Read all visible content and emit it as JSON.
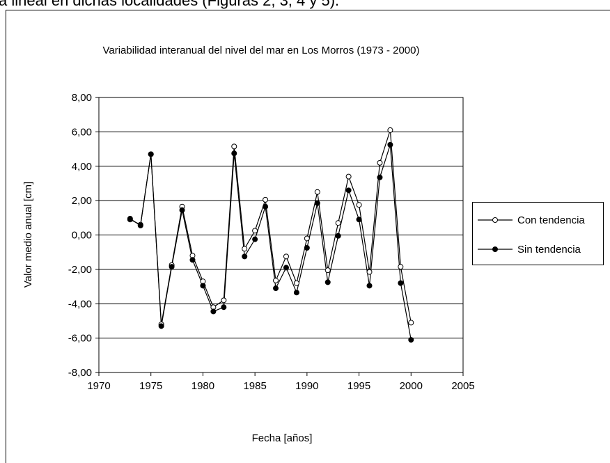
{
  "caption_text": "a lineal en dichas localidades (Figuras 2, 3, 4 y 5).",
  "chart_data": {
    "type": "line",
    "title": "Variabilidad interanual del nivel del mar en Los Morros (1973 - 2000)",
    "xlabel": "Fecha [años]",
    "ylabel": "Valor medio anual [cm]",
    "x": [
      1973,
      1974,
      1975,
      1976,
      1977,
      1978,
      1979,
      1980,
      1981,
      1982,
      1983,
      1984,
      1985,
      1986,
      1987,
      1988,
      1989,
      1990,
      1991,
      1992,
      1993,
      1994,
      1995,
      1996,
      1997,
      1998,
      1999,
      2000
    ],
    "series": [
      {
        "name": "Con tendencia",
        "color": "#000000",
        "marker": "open",
        "values": [
          0.9,
          0.6,
          4.7,
          -5.2,
          -1.75,
          1.65,
          -1.2,
          -2.7,
          -4.2,
          -3.8,
          5.15,
          -0.8,
          0.25,
          2.05,
          -2.65,
          -1.25,
          -2.8,
          -0.2,
          2.5,
          -2.05,
          0.7,
          3.4,
          1.75,
          -2.15,
          4.2,
          6.1,
          -1.85,
          -5.1
        ]
      },
      {
        "name": "Sin tendencia",
        "color": "#000000",
        "marker": "filled",
        "values": [
          0.95,
          0.55,
          4.7,
          -5.3,
          -1.85,
          1.45,
          -1.45,
          -2.95,
          -4.45,
          -4.2,
          4.75,
          -1.25,
          -0.25,
          1.65,
          -3.1,
          -1.9,
          -3.35,
          -0.75,
          1.85,
          -2.75,
          -0.05,
          2.6,
          0.9,
          -2.95,
          3.35,
          5.25,
          -2.8,
          -6.1
        ]
      }
    ],
    "xlim": [
      1970,
      2005
    ],
    "xticks": [
      1970,
      1975,
      1980,
      1985,
      1990,
      1995,
      2000,
      2005
    ],
    "ylim": [
      -8,
      8
    ],
    "yticks": [
      {
        "value": -8,
        "label": "-8,00"
      },
      {
        "value": -6,
        "label": "-6,00"
      },
      {
        "value": -4,
        "label": "-4,00"
      },
      {
        "value": -2,
        "label": "-2,00"
      },
      {
        "value": 0,
        "label": "0,00"
      },
      {
        "value": 2,
        "label": "2,00"
      },
      {
        "value": 4,
        "label": "4,00"
      },
      {
        "value": 6,
        "label": "6,00"
      },
      {
        "value": 8,
        "label": "8,00"
      }
    ],
    "grid": true,
    "legend": "right"
  }
}
